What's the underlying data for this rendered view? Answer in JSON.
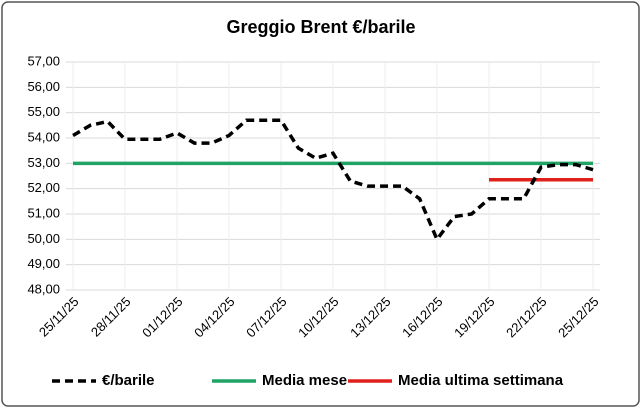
{
  "chart_data": {
    "type": "line",
    "title": "Greggio Brent €/barile",
    "categories": [
      "25/11/25",
      null,
      null,
      "28/11/25",
      null,
      null,
      "01/12/25",
      null,
      null,
      "04/12/25",
      null,
      null,
      "07/12/25",
      null,
      null,
      "10/12/25",
      null,
      null,
      "13/12/25",
      null,
      null,
      "16/12/25",
      null,
      null,
      "19/12/25",
      null,
      null,
      "22/12/25",
      null,
      null,
      "25/12/25"
    ],
    "series": [
      {
        "name": "€/barile",
        "color": "#000000",
        "dashed": true,
        "values": [
          54.1,
          54.5,
          54.65,
          53.95,
          53.95,
          53.95,
          54.2,
          53.8,
          53.8,
          54.1,
          54.7,
          54.7,
          54.7,
          53.6,
          53.2,
          53.4,
          52.3,
          52.1,
          52.1,
          52.1,
          51.6,
          50.0,
          50.9,
          51.0,
          51.6,
          51.6,
          51.6,
          52.85,
          52.95,
          52.95,
          52.75
        ]
      },
      {
        "name": "Media mese",
        "color": "#21a366",
        "dashed": false,
        "values": [
          53.0,
          53.0,
          53.0,
          53.0,
          53.0,
          53.0,
          53.0,
          53.0,
          53.0,
          53.0,
          53.0,
          53.0,
          53.0,
          53.0,
          53.0,
          53.0,
          53.0,
          53.0,
          53.0,
          53.0,
          53.0,
          53.0,
          53.0,
          53.0,
          53.0,
          53.0,
          53.0,
          53.0,
          53.0,
          53.0,
          53.0
        ]
      },
      {
        "name": "Media ultima settimana",
        "color": "#e0201b",
        "dashed": false,
        "values": [
          null,
          null,
          null,
          null,
          null,
          null,
          null,
          null,
          null,
          null,
          null,
          null,
          null,
          null,
          null,
          null,
          null,
          null,
          null,
          null,
          null,
          null,
          null,
          null,
          52.35,
          52.35,
          52.35,
          52.35,
          52.35,
          52.35,
          52.35
        ]
      }
    ],
    "ylim": [
      48,
      57
    ],
    "yticks": [
      {
        "value": 48,
        "label": "48,00"
      },
      {
        "value": 49,
        "label": "49,00"
      },
      {
        "value": 50,
        "label": "50,00"
      },
      {
        "value": 51,
        "label": "51,00"
      },
      {
        "value": 52,
        "label": "52,00"
      },
      {
        "value": 53,
        "label": "53,00"
      },
      {
        "value": 54,
        "label": "54,00"
      },
      {
        "value": 55,
        "label": "55,00"
      },
      {
        "value": 56,
        "label": "56,00"
      },
      {
        "value": 57,
        "label": "57,00"
      }
    ],
    "grid": true,
    "legend": "bottom"
  }
}
